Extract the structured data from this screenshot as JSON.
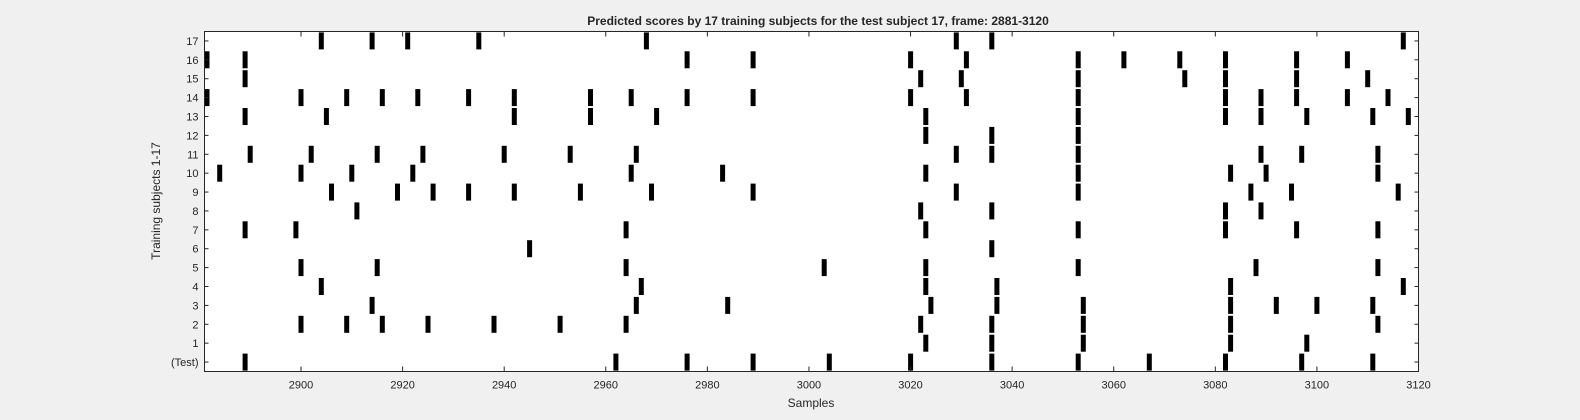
{
  "chart_data": {
    "type": "raster",
    "title": "Predicted scores by 17 training subjects for the test subject 17, frame: 2881-3120",
    "xlabel": "Samples",
    "ylabel": "Training subjects 1-17",
    "xlim": [
      2881,
      3120
    ],
    "xticks": [
      2900,
      2920,
      2940,
      2960,
      2980,
      3000,
      3020,
      3040,
      3060,
      3080,
      3100,
      3120
    ],
    "grid": false,
    "legend": "none",
    "rows": [
      {
        "label": "(Test)",
        "events": [
          2889,
          2962,
          2976,
          2989,
          3004,
          3020,
          3036,
          3053,
          3067,
          3082,
          3097,
          3111
        ]
      },
      {
        "label": "1",
        "events": [
          3023,
          3036,
          3054,
          3083,
          3098
        ]
      },
      {
        "label": "2",
        "events": [
          2900,
          2909,
          2916,
          2925,
          2938,
          2951,
          2964,
          3022,
          3036,
          3054,
          3083,
          3112
        ]
      },
      {
        "label": "3",
        "events": [
          2914,
          2966,
          2984,
          3024,
          3037,
          3054,
          3083,
          3092,
          3100,
          3111
        ]
      },
      {
        "label": "4",
        "events": [
          2904,
          2967,
          3023,
          3037,
          3083,
          3117
        ]
      },
      {
        "label": "5",
        "events": [
          2900,
          2915,
          2964,
          3003,
          3023,
          3053,
          3088,
          3112
        ]
      },
      {
        "label": "6",
        "events": [
          2945,
          3036
        ]
      },
      {
        "label": "7",
        "events": [
          2889,
          2899,
          2964,
          3023,
          3053,
          3082,
          3096,
          3112
        ]
      },
      {
        "label": "8",
        "events": [
          2911,
          3022,
          3036,
          3082,
          3089
        ]
      },
      {
        "label": "9",
        "events": [
          2906,
          2919,
          2926,
          2933,
          2942,
          2955,
          2969,
          2989,
          3029,
          3053,
          3087,
          3095,
          3116
        ]
      },
      {
        "label": "10",
        "events": [
          2884,
          2900,
          2910,
          2922,
          2965,
          2983,
          3023,
          3053,
          3083,
          3090,
          3112
        ]
      },
      {
        "label": "11",
        "events": [
          2890,
          2902,
          2915,
          2924,
          2940,
          2953,
          2966,
          3029,
          3036,
          3053,
          3089,
          3097,
          3112
        ]
      },
      {
        "label": "12",
        "events": [
          3023,
          3036,
          3053
        ]
      },
      {
        "label": "13",
        "events": [
          2889,
          2905,
          2942,
          2957,
          2970,
          3023,
          3053,
          3082,
          3089,
          3098,
          3111,
          3118
        ]
      },
      {
        "label": "14",
        "events": [
          2881,
          2900,
          2909,
          2916,
          2923,
          2933,
          2942,
          2957,
          2965,
          2976,
          2989,
          3020,
          3031,
          3053,
          3082,
          3089,
          3096,
          3106,
          3114
        ]
      },
      {
        "label": "15",
        "events": [
          2889,
          3022,
          3030,
          3053,
          3074,
          3082,
          3096,
          3110
        ]
      },
      {
        "label": "16",
        "events": [
          2881,
          2889,
          2976,
          2989,
          3020,
          3031,
          3053,
          3062,
          3073,
          3082,
          3096,
          3106
        ]
      },
      {
        "label": "17",
        "events": [
          2904,
          2914,
          2921,
          2935,
          2968,
          3029,
          3036,
          3117
        ]
      }
    ]
  }
}
